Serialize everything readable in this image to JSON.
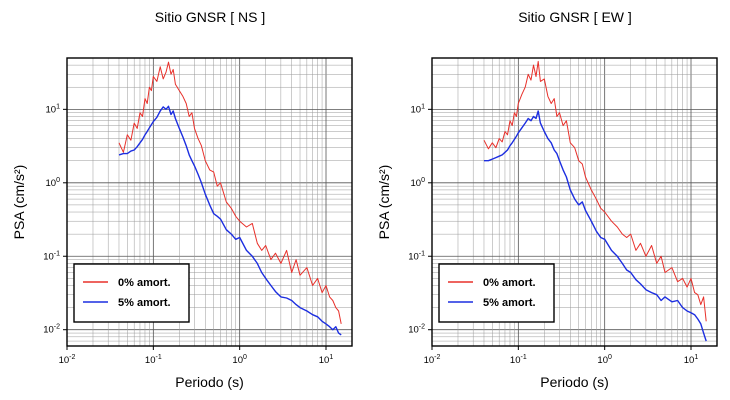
{
  "chart_data": [
    {
      "type": "line",
      "title": "Sitio GNSR [ NS ]",
      "xlabel": "Periodo (s)",
      "ylabel": "PSA (cm/s²)",
      "xscale": "log",
      "yscale": "log",
      "xlim": [
        0.01,
        20
      ],
      "ylim": [
        0.006,
        50
      ],
      "x_ticks": [
        0.01,
        0.1,
        1,
        10
      ],
      "x_tick_labels": [
        {
          "base": "10",
          "exp": "-2"
        },
        {
          "base": "10",
          "exp": "-1"
        },
        {
          "base": "10",
          "exp": "0"
        },
        {
          "base": "10",
          "exp": "1"
        }
      ],
      "y_ticks": [
        0.01,
        0.1,
        1,
        10
      ],
      "y_tick_labels": [
        {
          "base": "10",
          "exp": "-2"
        },
        {
          "base": "10",
          "exp": "-1"
        },
        {
          "base": "10",
          "exp": "0"
        },
        {
          "base": "10",
          "exp": "1"
        }
      ],
      "grid": true,
      "legend_position": "bottom-left",
      "series": [
        {
          "name": "0% amort.",
          "color": "#e8302a",
          "x": [
            0.04,
            0.045,
            0.05,
            0.055,
            0.06,
            0.065,
            0.07,
            0.075,
            0.08,
            0.085,
            0.09,
            0.095,
            0.1,
            0.11,
            0.12,
            0.13,
            0.14,
            0.15,
            0.16,
            0.17,
            0.18,
            0.2,
            0.22,
            0.24,
            0.26,
            0.28,
            0.3,
            0.33,
            0.36,
            0.4,
            0.45,
            0.5,
            0.55,
            0.6,
            0.7,
            0.8,
            0.9,
            1.0,
            1.2,
            1.4,
            1.6,
            1.8,
            2.0,
            2.3,
            2.6,
            3.0,
            3.5,
            4.0,
            4.5,
            5.0,
            6.0,
            7.0,
            8.0,
            9.0,
            10,
            11,
            12,
            13,
            14,
            15
          ],
          "values": [
            3.5,
            2.6,
            4.5,
            3.8,
            6.5,
            5.5,
            9.0,
            8.0,
            14,
            12,
            20,
            18,
            28,
            24,
            38,
            26,
            32,
            44,
            30,
            35,
            22,
            18,
            15,
            12,
            8.0,
            9.0,
            5.5,
            4.0,
            3.2,
            2.0,
            1.5,
            1.4,
            0.9,
            1.0,
            0.55,
            0.45,
            0.35,
            0.3,
            0.25,
            0.28,
            0.15,
            0.12,
            0.14,
            0.09,
            0.11,
            0.08,
            0.12,
            0.06,
            0.09,
            0.055,
            0.07,
            0.04,
            0.05,
            0.032,
            0.04,
            0.028,
            0.025,
            0.02,
            0.018,
            0.012
          ]
        },
        {
          "name": "5% amort.",
          "color": "#1c2ee0",
          "x": [
            0.04,
            0.045,
            0.05,
            0.055,
            0.06,
            0.065,
            0.07,
            0.075,
            0.08,
            0.085,
            0.09,
            0.095,
            0.1,
            0.11,
            0.12,
            0.13,
            0.14,
            0.15,
            0.16,
            0.17,
            0.18,
            0.2,
            0.22,
            0.24,
            0.26,
            0.28,
            0.3,
            0.33,
            0.36,
            0.4,
            0.45,
            0.5,
            0.55,
            0.6,
            0.7,
            0.8,
            0.9,
            1.0,
            1.2,
            1.4,
            1.6,
            1.8,
            2.0,
            2.3,
            2.6,
            3.0,
            3.5,
            4.0,
            4.5,
            5.0,
            6.0,
            7.0,
            8.0,
            9.0,
            10,
            11,
            12,
            13,
            14,
            15
          ],
          "values": [
            2.4,
            2.5,
            2.5,
            2.7,
            2.8,
            3.1,
            3.5,
            3.9,
            4.5,
            5.0,
            5.6,
            6.2,
            6.8,
            7.8,
            9.5,
            10.8,
            10.0,
            11.0,
            8.5,
            9.5,
            7.5,
            5.5,
            4.2,
            3.2,
            2.4,
            2.0,
            1.7,
            1.3,
            1.0,
            0.7,
            0.5,
            0.38,
            0.35,
            0.32,
            0.23,
            0.2,
            0.17,
            0.18,
            0.12,
            0.1,
            0.08,
            0.06,
            0.05,
            0.04,
            0.033,
            0.028,
            0.027,
            0.025,
            0.022,
            0.02,
            0.018,
            0.016,
            0.015,
            0.013,
            0.012,
            0.011,
            0.01,
            0.011,
            0.009,
            0.0085
          ]
        }
      ]
    },
    {
      "type": "line",
      "title": "Sitio GNSR [ EW ]",
      "xlabel": "Periodo (s)",
      "ylabel": "PSA (cm/s²)",
      "xscale": "log",
      "yscale": "log",
      "xlim": [
        0.01,
        20
      ],
      "ylim": [
        0.006,
        50
      ],
      "x_ticks": [
        0.01,
        0.1,
        1,
        10
      ],
      "x_tick_labels": [
        {
          "base": "10",
          "exp": "-2"
        },
        {
          "base": "10",
          "exp": "-1"
        },
        {
          "base": "10",
          "exp": "0"
        },
        {
          "base": "10",
          "exp": "1"
        }
      ],
      "y_ticks": [
        0.01,
        0.1,
        1,
        10
      ],
      "y_tick_labels": [
        {
          "base": "10",
          "exp": "-2"
        },
        {
          "base": "10",
          "exp": "-1"
        },
        {
          "base": "10",
          "exp": "0"
        },
        {
          "base": "10",
          "exp": "1"
        }
      ],
      "grid": true,
      "legend_position": "bottom-left",
      "series": [
        {
          "name": "0% amort.",
          "color": "#e8302a",
          "x": [
            0.04,
            0.045,
            0.05,
            0.055,
            0.06,
            0.065,
            0.07,
            0.075,
            0.08,
            0.085,
            0.09,
            0.095,
            0.1,
            0.11,
            0.12,
            0.13,
            0.14,
            0.15,
            0.16,
            0.17,
            0.18,
            0.2,
            0.22,
            0.24,
            0.26,
            0.28,
            0.3,
            0.33,
            0.36,
            0.4,
            0.45,
            0.5,
            0.55,
            0.6,
            0.7,
            0.8,
            0.9,
            1.0,
            1.2,
            1.4,
            1.6,
            1.8,
            2.0,
            2.3,
            2.6,
            3.0,
            3.5,
            4.0,
            4.5,
            5.0,
            6.0,
            7.0,
            8.0,
            9.0,
            10,
            11,
            12,
            13,
            14,
            15
          ],
          "values": [
            3.8,
            2.9,
            3.5,
            3.0,
            4.0,
            3.6,
            5.0,
            4.5,
            7.0,
            6.0,
            9.0,
            8.0,
            12,
            16,
            20,
            30,
            25,
            40,
            28,
            45,
            24,
            26,
            15,
            12,
            14,
            8.0,
            9.0,
            6.0,
            7.0,
            3.5,
            3.0,
            2.0,
            1.8,
            1.2,
            0.8,
            0.6,
            0.45,
            0.4,
            0.3,
            0.25,
            0.2,
            0.18,
            0.2,
            0.12,
            0.15,
            0.1,
            0.14,
            0.08,
            0.1,
            0.06,
            0.07,
            0.045,
            0.05,
            0.038,
            0.05,
            0.032,
            0.03,
            0.022,
            0.028,
            0.013
          ]
        },
        {
          "name": "5% amort.",
          "color": "#1c2ee0",
          "x": [
            0.04,
            0.045,
            0.05,
            0.055,
            0.06,
            0.065,
            0.07,
            0.075,
            0.08,
            0.085,
            0.09,
            0.095,
            0.1,
            0.11,
            0.12,
            0.13,
            0.14,
            0.15,
            0.16,
            0.17,
            0.18,
            0.2,
            0.22,
            0.24,
            0.26,
            0.28,
            0.3,
            0.33,
            0.36,
            0.4,
            0.45,
            0.5,
            0.55,
            0.6,
            0.7,
            0.8,
            0.9,
            1.0,
            1.2,
            1.4,
            1.6,
            1.8,
            2.0,
            2.3,
            2.6,
            3.0,
            3.5,
            4.0,
            4.5,
            5.0,
            6.0,
            7.0,
            8.0,
            9.0,
            10,
            11,
            12,
            13,
            14,
            15
          ],
          "values": [
            2.0,
            2.0,
            2.1,
            2.2,
            2.3,
            2.4,
            2.6,
            2.8,
            3.2,
            3.5,
            3.9,
            4.3,
            4.8,
            5.6,
            6.5,
            7.5,
            7.0,
            8.0,
            7.5,
            9.5,
            6.5,
            5.0,
            4.0,
            3.5,
            2.8,
            2.5,
            2.0,
            1.5,
            1.2,
            0.8,
            0.6,
            0.5,
            0.55,
            0.42,
            0.3,
            0.22,
            0.18,
            0.17,
            0.12,
            0.1,
            0.08,
            0.065,
            0.06,
            0.048,
            0.042,
            0.035,
            0.032,
            0.03,
            0.025,
            0.028,
            0.024,
            0.025,
            0.02,
            0.018,
            0.017,
            0.016,
            0.014,
            0.012,
            0.009,
            0.007
          ]
        }
      ]
    }
  ]
}
